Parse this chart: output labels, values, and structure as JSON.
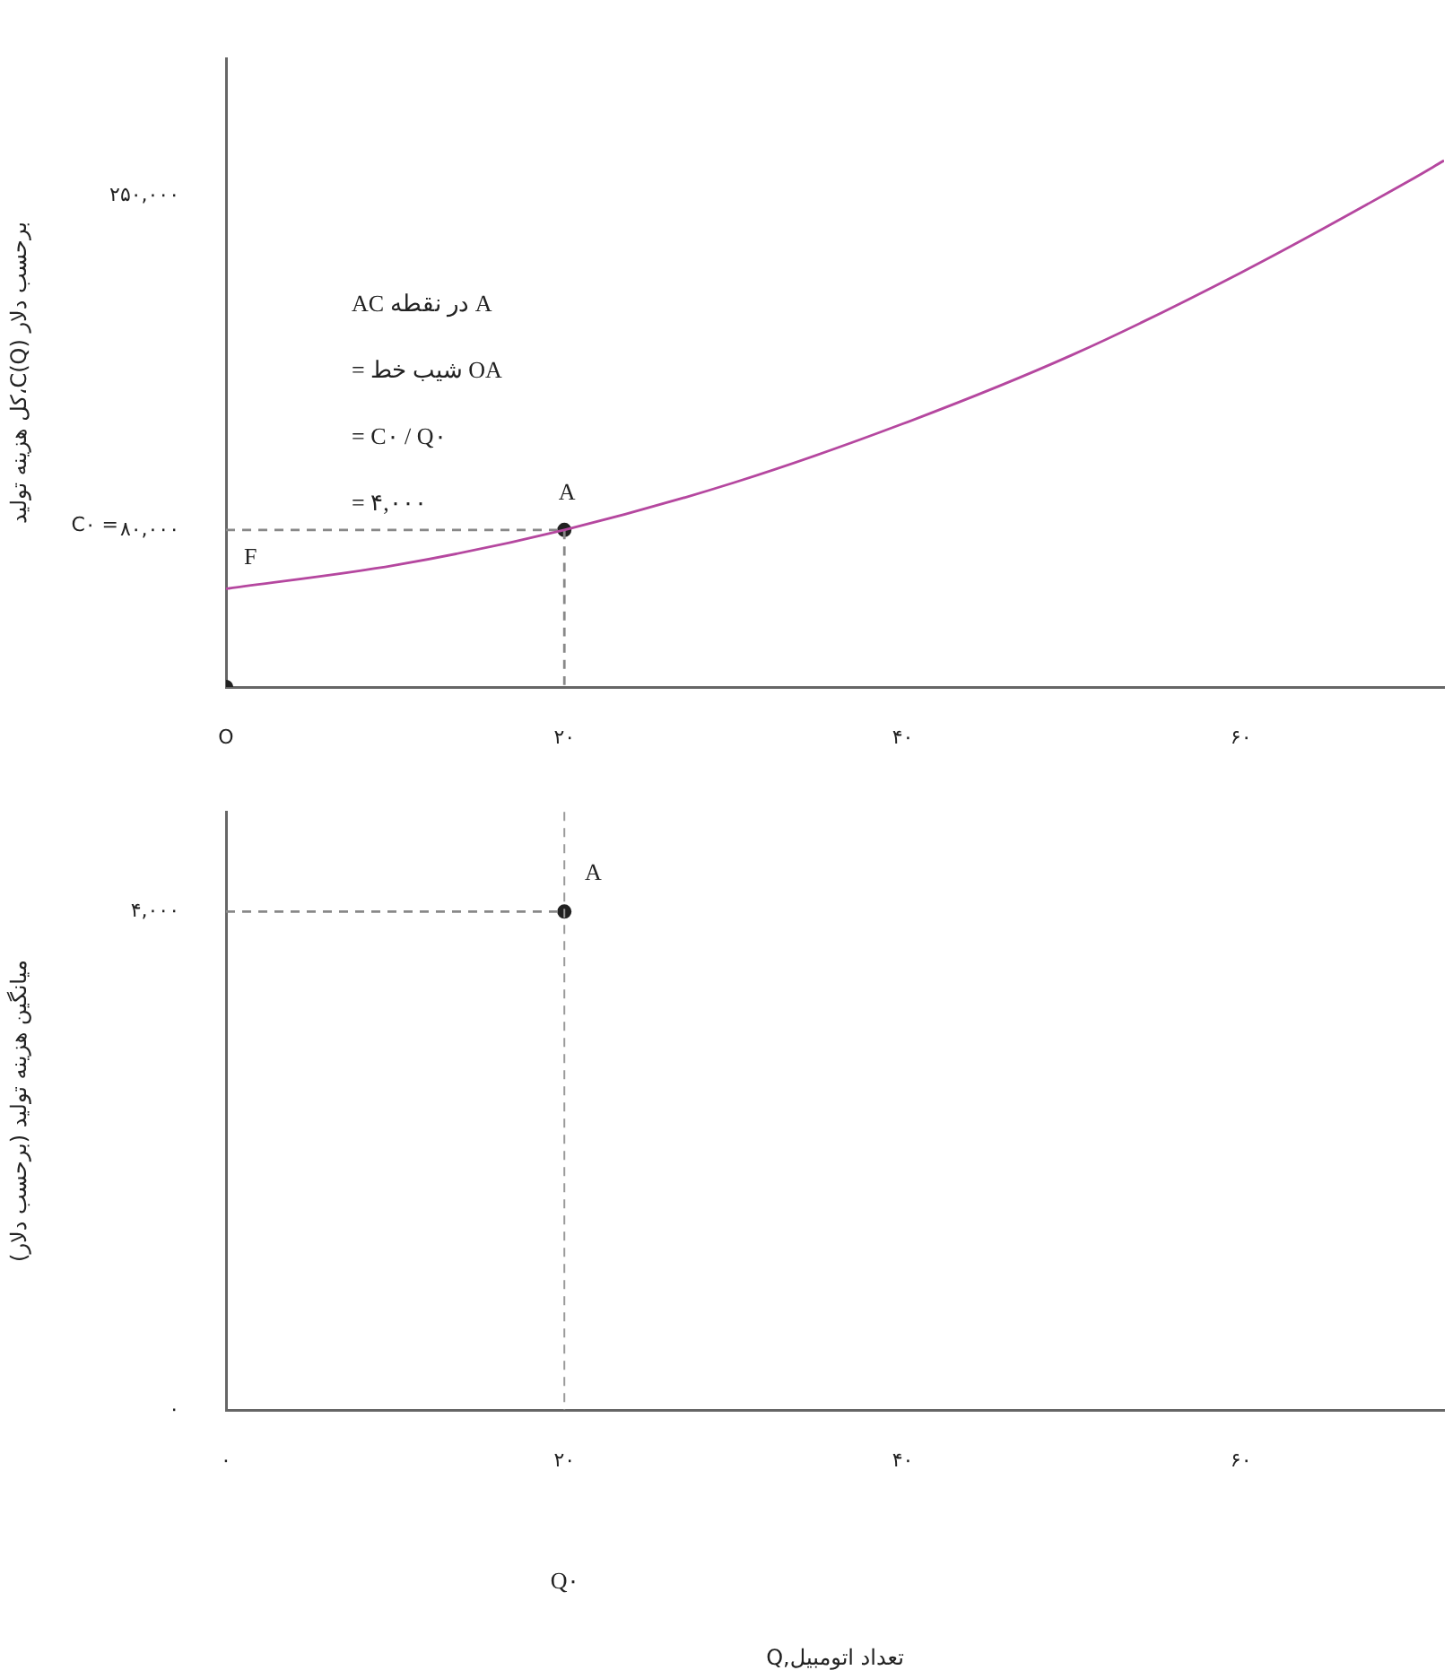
{
  "chart_data": [
    {
      "type": "line",
      "ylabel": "کل هزینه تولید،C(Q) برحسب دلار",
      "xlim": [
        0,
        72
      ],
      "xticks": [
        {
          "value": 0,
          "label": "O"
        },
        {
          "value": 20,
          "label": "۲۰"
        },
        {
          "value": 40,
          "label": "۴۰"
        },
        {
          "value": 60,
          "label": "۶۰"
        }
      ],
      "ylim": [
        0,
        320000
      ],
      "yticks": [
        {
          "value": 80000,
          "label": "۸۰,۰۰۰"
        },
        {
          "value": 250000,
          "label": "۲۵۰,۰۰۰"
        }
      ],
      "grid": false,
      "legend": false,
      "series": [
        {
          "color": "#b5479f",
          "marker": "none",
          "x": [
            0,
            10,
            20,
            30,
            40,
            50,
            60,
            70,
            72
          ],
          "values": [
            50000,
            62000,
            80000,
            104000,
            134000,
            169000,
            211000,
            258000,
            268000
          ]
        },
        {
          "color": "#888888",
          "marker": "none",
          "line_style": "dashed",
          "x": [
            0,
            20,
            20
          ],
          "values": [
            80000,
            80000,
            0
          ]
        },
        {
          "type": "scatter",
          "color": "#222222",
          "marker": "circle",
          "x": [
            0,
            20
          ],
          "values": [
            0,
            80000
          ]
        }
      ],
      "annotations": [
        "A",
        "F",
        "C۰ =",
        "AC در نقطه A",
        "= شیب خط OA",
        "= C۰ / Q۰",
        "= ۴,۰۰۰"
      ]
    },
    {
      "type": "line",
      "xlabel": "Q,تعداد اتومبیل",
      "ylabel": "میانگین هزینه تولید (برحسب دلار)",
      "xlim": [
        0,
        72
      ],
      "xticks": [
        {
          "value": 0,
          "label": "۰"
        },
        {
          "value": 20,
          "label": "۲۰"
        },
        {
          "value": 40,
          "label": "۴۰"
        },
        {
          "value": 60,
          "label": "۶۰"
        }
      ],
      "ylim": [
        0,
        4800
      ],
      "yticks": [
        {
          "value": 0,
          "label": "۰"
        },
        {
          "value": 4000,
          "label": "۴,۰۰۰"
        }
      ],
      "grid": false,
      "legend": false,
      "series": [
        {
          "color": "#888888",
          "marker": "none",
          "line_style": "dashed",
          "x": [
            0,
            20
          ],
          "values": [
            4000,
            4000
          ]
        },
        {
          "type": "scatter",
          "color": "#222222",
          "marker": "circle",
          "x": [
            20
          ],
          "values": [
            4000
          ]
        }
      ],
      "ref_lines": [
        {
          "axis": "x",
          "value": 20,
          "color": "#999999",
          "line_style": "dashed"
        }
      ],
      "annotations": [
        "A",
        "Q۰"
      ]
    }
  ]
}
